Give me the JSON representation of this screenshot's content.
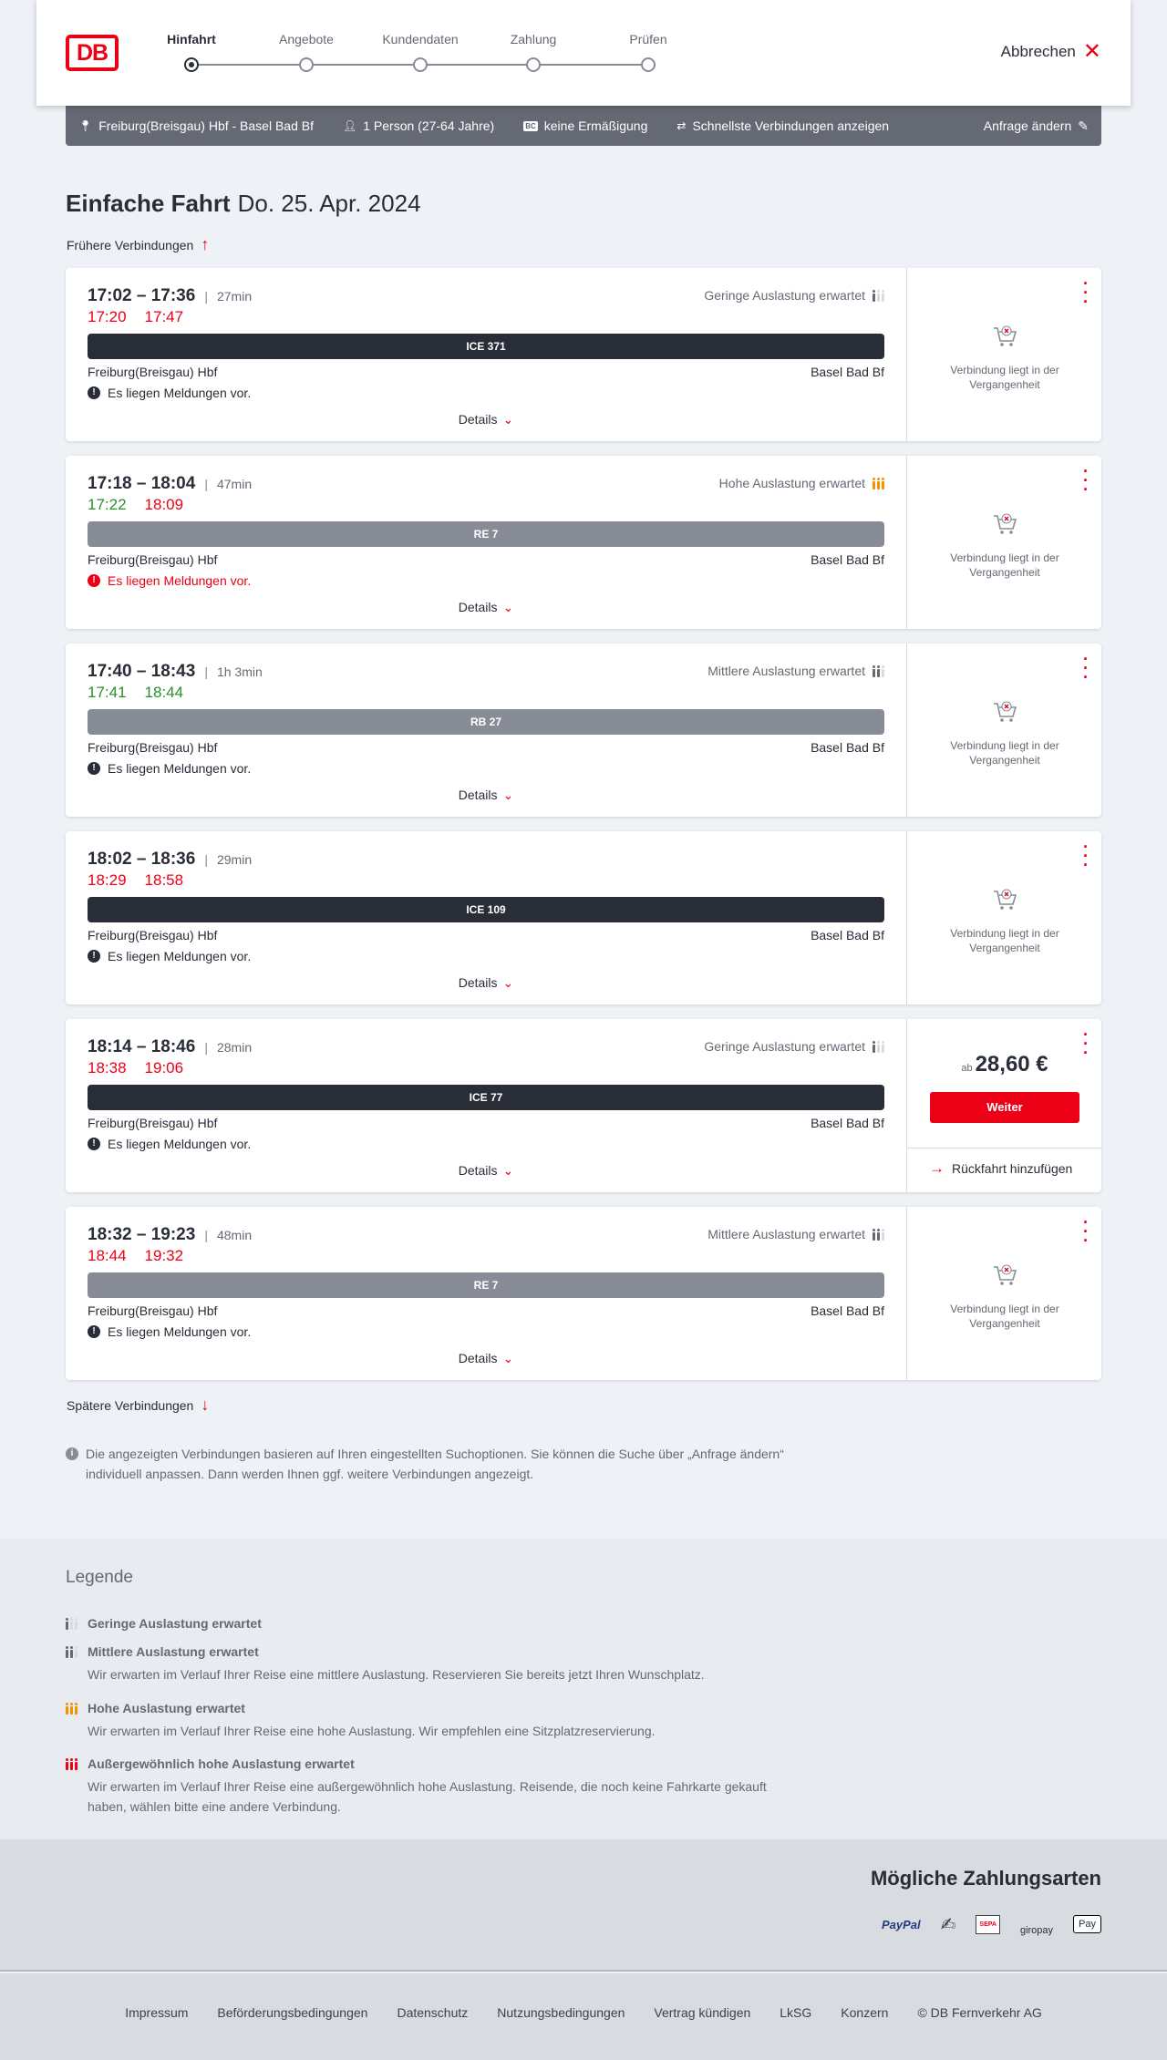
{
  "header": {
    "logo": "DB",
    "steps": [
      {
        "label": "Hinfahrt",
        "active": true
      },
      {
        "label": "Angebote"
      },
      {
        "label": "Kundendaten"
      },
      {
        "label": "Zahlung"
      },
      {
        "label": "Prüfen"
      }
    ],
    "cancel_label": "Abbrechen"
  },
  "request": {
    "route": "Freiburg(Breisgau) Hbf - Basel Bad Bf",
    "passengers": "1 Person (27-64 Jahre)",
    "discount_badge": "BC",
    "discount": "keine Ermäßigung",
    "fastest": "Schnellste Verbindungen anzeigen",
    "edit": "Anfrage ändern"
  },
  "title": {
    "trip": "Einfache Fahrt",
    "date": "Do. 25. Apr. 2024"
  },
  "earlier": "Frühere Verbindungen",
  "later": "Spätere Verbindungen",
  "colors": {
    "red": "#ec0016",
    "green": "#2a8f2a",
    "ice": "#282d37",
    "regional": "#878c96",
    "orange": "#f39200"
  },
  "connections": [
    {
      "times": "17:02 – 17:36",
      "duration": "27min",
      "rt_dep": "17:20",
      "rt_arr": "17:47",
      "rt_dep_ok": false,
      "rt_arr_ok": false,
      "occupancy": "Geringe Auslastung erwartet",
      "occ_level": "low",
      "product": "ICE 371",
      "ice": true,
      "from": "Freiburg(Breisgau) Hbf",
      "to": "Basel Bad Bf",
      "message": "Es liegen Meldungen vor.",
      "message_alert": false,
      "details": "Details",
      "past": "Verbindung liegt in der Vergangenheit"
    },
    {
      "times": "17:18 – 18:04",
      "duration": "47min",
      "rt_dep": "17:22",
      "rt_arr": "18:09",
      "rt_dep_ok": true,
      "rt_arr_ok": false,
      "occupancy": "Hohe Auslastung erwartet",
      "occ_level": "high",
      "product": "RE 7",
      "ice": false,
      "from": "Freiburg(Breisgau) Hbf",
      "to": "Basel Bad Bf",
      "message": "Es liegen Meldungen vor.",
      "message_alert": true,
      "details": "Details",
      "past": "Verbindung liegt in der Vergangenheit"
    },
    {
      "times": "17:40 – 18:43",
      "duration": "1h 3min",
      "rt_dep": "17:41",
      "rt_arr": "18:44",
      "rt_dep_ok": true,
      "rt_arr_ok": true,
      "occupancy": "Mittlere Auslastung erwartet",
      "occ_level": "medium",
      "product": "RB 27",
      "ice": false,
      "from": "Freiburg(Breisgau) Hbf",
      "to": "Basel Bad Bf",
      "message": "Es liegen Meldungen vor.",
      "message_alert": false,
      "details": "Details",
      "past": "Verbindung liegt in der Vergangenheit"
    },
    {
      "times": "18:02 – 18:36",
      "duration": "29min",
      "rt_dep": "18:29",
      "rt_arr": "18:58",
      "rt_dep_ok": false,
      "rt_arr_ok": false,
      "occupancy": "",
      "occ_level": "",
      "product": "ICE 109",
      "ice": true,
      "from": "Freiburg(Breisgau) Hbf",
      "to": "Basel Bad Bf",
      "message": "Es liegen Meldungen vor.",
      "message_alert": false,
      "details": "Details",
      "past": "Verbindung liegt in der Vergangenheit"
    },
    {
      "times": "18:14 – 18:46",
      "duration": "28min",
      "rt_dep": "18:38",
      "rt_arr": "19:06",
      "rt_dep_ok": false,
      "rt_arr_ok": false,
      "occupancy": "Geringe Auslastung erwartet",
      "occ_level": "low",
      "product": "ICE 77",
      "ice": true,
      "from": "Freiburg(Breisgau) Hbf",
      "to": "Basel Bad Bf",
      "message": "Es liegen Meldungen vor.",
      "message_alert": false,
      "details": "Details",
      "price_prefix": "ab",
      "price": "28,60 €",
      "continue": "Weiter",
      "return": "Rückfahrt hinzufügen"
    },
    {
      "times": "18:32 – 19:23",
      "duration": "48min",
      "rt_dep": "18:44",
      "rt_arr": "19:32",
      "rt_dep_ok": false,
      "rt_arr_ok": false,
      "occupancy": "Mittlere Auslastung erwartet",
      "occ_level": "medium",
      "product": "RE 7",
      "ice": false,
      "from": "Freiburg(Breisgau) Hbf",
      "to": "Basel Bad Bf",
      "message": "Es liegen Meldungen vor.",
      "message_alert": false,
      "details": "Details",
      "past": "Verbindung liegt in der Vergangenheit"
    }
  ],
  "info": "Die angezeigten Verbindungen basieren auf Ihren eingestellten Suchoptionen. Sie können die Suche über „Anfrage ändern“ individuell anpassen. Dann werden Ihnen ggf. weitere Verbindungen angezeigt.",
  "legend": {
    "title": "Legende",
    "items": [
      {
        "level": "low",
        "title": "Geringe Auslastung erwartet",
        "text": ""
      },
      {
        "level": "medium",
        "title": "Mittlere Auslastung erwartet",
        "text": "Wir erwarten im Verlauf Ihrer Reise eine mittlere Auslastung. Reservieren Sie bereits jetzt Ihren Wunschplatz."
      },
      {
        "level": "high",
        "title": "Hohe Auslastung erwartet",
        "text": "Wir erwarten im Verlauf Ihrer Reise eine hohe Auslastung. Wir empfehlen eine Sitzplatzreservierung."
      },
      {
        "level": "extreme",
        "title": "Außergewöhnlich hohe Auslastung erwartet",
        "text": "Wir erwarten im Verlauf Ihrer Reise eine außergewöhnlich hohe Auslastung. Reisende, die noch keine Fahrkarte gekauft haben, wählen bitte eine andere Verbindung."
      }
    ]
  },
  "payment": {
    "title": "Mögliche Zahlungsarten",
    "methods": [
      "PayPal",
      "Kreditkarte",
      "SEPA",
      "giropay",
      "Pay"
    ]
  },
  "footer": [
    "Impressum",
    "Beförderungsbedingungen",
    "Datenschutz",
    "Nutzungsbedingungen",
    "Vertrag kündigen",
    "LkSG",
    "Konzern",
    "© DB Fernverkehr AG"
  ]
}
